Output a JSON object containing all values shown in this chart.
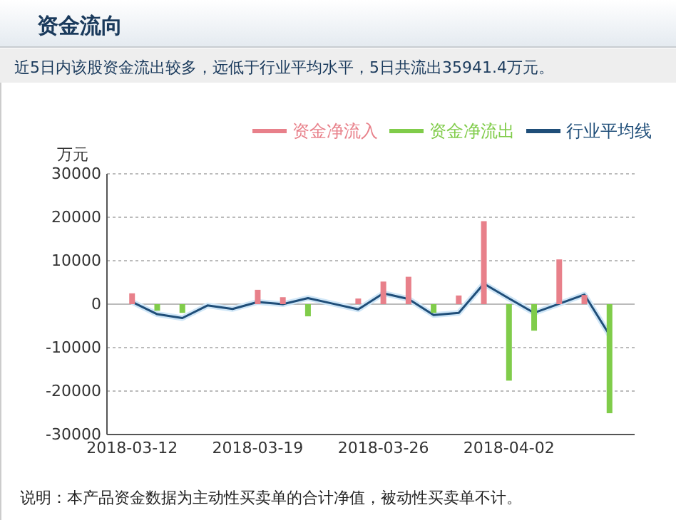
{
  "chart_data": {
    "type": "bar",
    "title": "资金流向",
    "subtitle": "近5日内该股资金流出较多，远低于行业平均水平，5日共流出35941.4万元。",
    "ylabel": "万元",
    "annotations": [
      "说明：本产品资金数据为主动性买卖单的合计净值，被动性买卖单不计。"
    ],
    "categories": [
      "2018-03-12",
      null,
      null,
      null,
      null,
      "2018-03-19",
      null,
      null,
      null,
      null,
      "2018-03-26",
      null,
      null,
      null,
      null,
      "2018-04-02",
      null,
      null,
      null,
      null
    ],
    "series": [
      {
        "name": "资金净流入",
        "color": "#e8808a",
        "values": [
          2500,
          null,
          null,
          null,
          null,
          3300,
          1600,
          null,
          null,
          1300,
          5200,
          6300,
          null,
          2000,
          19100,
          null,
          null,
          10300,
          2100,
          null
        ]
      },
      {
        "name": "资金净流出",
        "color": "#80cc4a",
        "values": [
          null,
          -1500,
          -2000,
          null,
          null,
          null,
          null,
          -2800,
          null,
          null,
          null,
          null,
          -2000,
          null,
          null,
          -17600,
          -6100,
          null,
          null,
          -25100
        ]
      },
      {
        "name": "行业平均线",
        "type": "line",
        "color": "#1f4e79",
        "values": [
          500,
          -2300,
          -3200,
          -300,
          -1100,
          500,
          0,
          1400,
          100,
          -1200,
          2500,
          1200,
          -2500,
          -2000,
          4700,
          1300,
          -2000,
          100,
          2200,
          -7100
        ]
      }
    ],
    "ylim": [
      -30000,
      30000
    ],
    "yticks": [
      -30000,
      -20000,
      -10000,
      0,
      10000,
      20000,
      30000
    ],
    "grid": "y",
    "legend": "top right"
  }
}
